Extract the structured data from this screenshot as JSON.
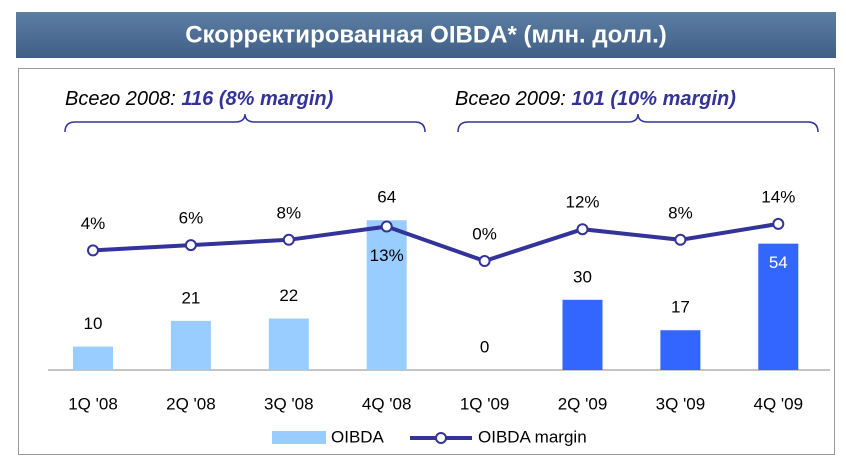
{
  "chart_data": {
    "type": "bar_line",
    "title": "Скорректированная OIBDA* (млн. долл.)",
    "annotations": [
      {
        "label": "Всего 2008:",
        "text": "116 (8% margin)"
      },
      {
        "label": "Всего 2009:",
        "text": "101 (10% margin)"
      }
    ],
    "categories": [
      "1Q '08",
      "2Q '08",
      "3Q '08",
      "4Q '08",
      "1Q '09",
      "2Q '09",
      "3Q '09",
      "4Q '09"
    ],
    "series": [
      {
        "name": "OIBDA",
        "color": "#99ccff",
        "colors": [
          "#99ccff",
          "#99ccff",
          "#99ccff",
          "#99ccff",
          "#3366ff",
          "#3366ff",
          "#3366ff",
          "#3366ff"
        ],
        "values": [
          10,
          21,
          22,
          64,
          0,
          30,
          17,
          54
        ]
      },
      {
        "name": "OIBDA margin",
        "color": "#333399",
        "values": [
          4,
          6,
          8,
          13,
          0,
          12,
          8,
          14
        ],
        "value_labels": [
          "4%",
          "6%",
          "8%",
          "13%",
          "0%",
          "12%",
          "8%",
          "14%"
        ]
      }
    ]
  }
}
